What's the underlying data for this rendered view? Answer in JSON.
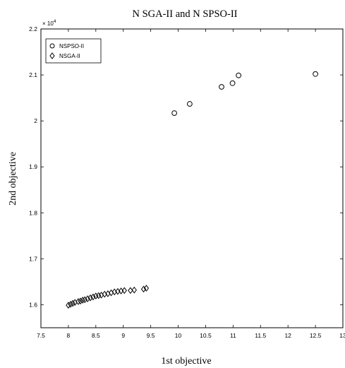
{
  "chart_data": {
    "type": "scatter",
    "title": "N SGA-II and N SPSO-II",
    "xlabel": "1st objective",
    "ylabel": "2nd objective",
    "xlim": [
      7.5,
      13
    ],
    "ylim": [
      15500,
      22000
    ],
    "x_ticks": [
      "7.5",
      "8",
      "8.5",
      "9",
      "9.5",
      "10",
      "10.5",
      "11",
      "11.5",
      "12",
      "12.5",
      "13"
    ],
    "y_ticks": [
      "1.6",
      "1.7",
      "1.8",
      "1.9",
      "2",
      "2.1",
      "2.2"
    ],
    "y_exponent": "× 10",
    "y_exponent_power": "4",
    "grid": false,
    "legend_position": "top-left",
    "series": [
      {
        "name": "NSPSO-II",
        "marker": "circle",
        "color": "#000000",
        "points": [
          [
            9.93,
            20170
          ],
          [
            10.21,
            20370
          ],
          [
            10.79,
            20740
          ],
          [
            10.99,
            20820
          ],
          [
            11.1,
            20990
          ],
          [
            12.5,
            21020
          ]
        ]
      },
      {
        "name": "NSGA-II",
        "marker": "diamond",
        "color": "#000000",
        "points": [
          [
            8.0,
            15990
          ],
          [
            8.04,
            16010
          ],
          [
            8.08,
            16030
          ],
          [
            8.12,
            16050
          ],
          [
            8.18,
            16070
          ],
          [
            8.22,
            16080
          ],
          [
            8.26,
            16100
          ],
          [
            8.3,
            16110
          ],
          [
            8.35,
            16130
          ],
          [
            8.4,
            16150
          ],
          [
            8.45,
            16170
          ],
          [
            8.5,
            16190
          ],
          [
            8.55,
            16200
          ],
          [
            8.6,
            16210
          ],
          [
            8.66,
            16230
          ],
          [
            8.72,
            16240
          ],
          [
            8.78,
            16260
          ],
          [
            8.84,
            16280
          ],
          [
            8.9,
            16290
          ],
          [
            8.96,
            16300
          ],
          [
            9.02,
            16310
          ],
          [
            9.13,
            16310
          ],
          [
            9.2,
            16320
          ],
          [
            9.37,
            16340
          ],
          [
            9.42,
            16360
          ]
        ]
      }
    ]
  }
}
